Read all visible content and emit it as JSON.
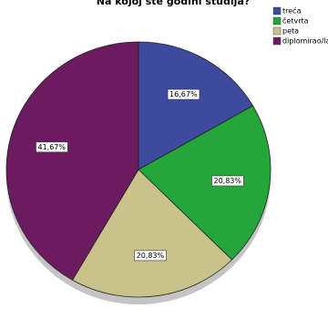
{
  "chart_data": {
    "type": "pie",
    "title": "Na kojoj ste godini studija?",
    "categories": [
      "treća",
      "četvrta",
      "peta",
      "diplomirao/la"
    ],
    "values": [
      16.67,
      20.83,
      20.83,
      41.67
    ],
    "value_labels": [
      "16,67%",
      "20,83%",
      "20,83%",
      "41,67%"
    ],
    "colors": [
      "#3d4a9e",
      "#24a63a",
      "#c9c38b",
      "#6d1b60"
    ],
    "legend": "top-right"
  }
}
